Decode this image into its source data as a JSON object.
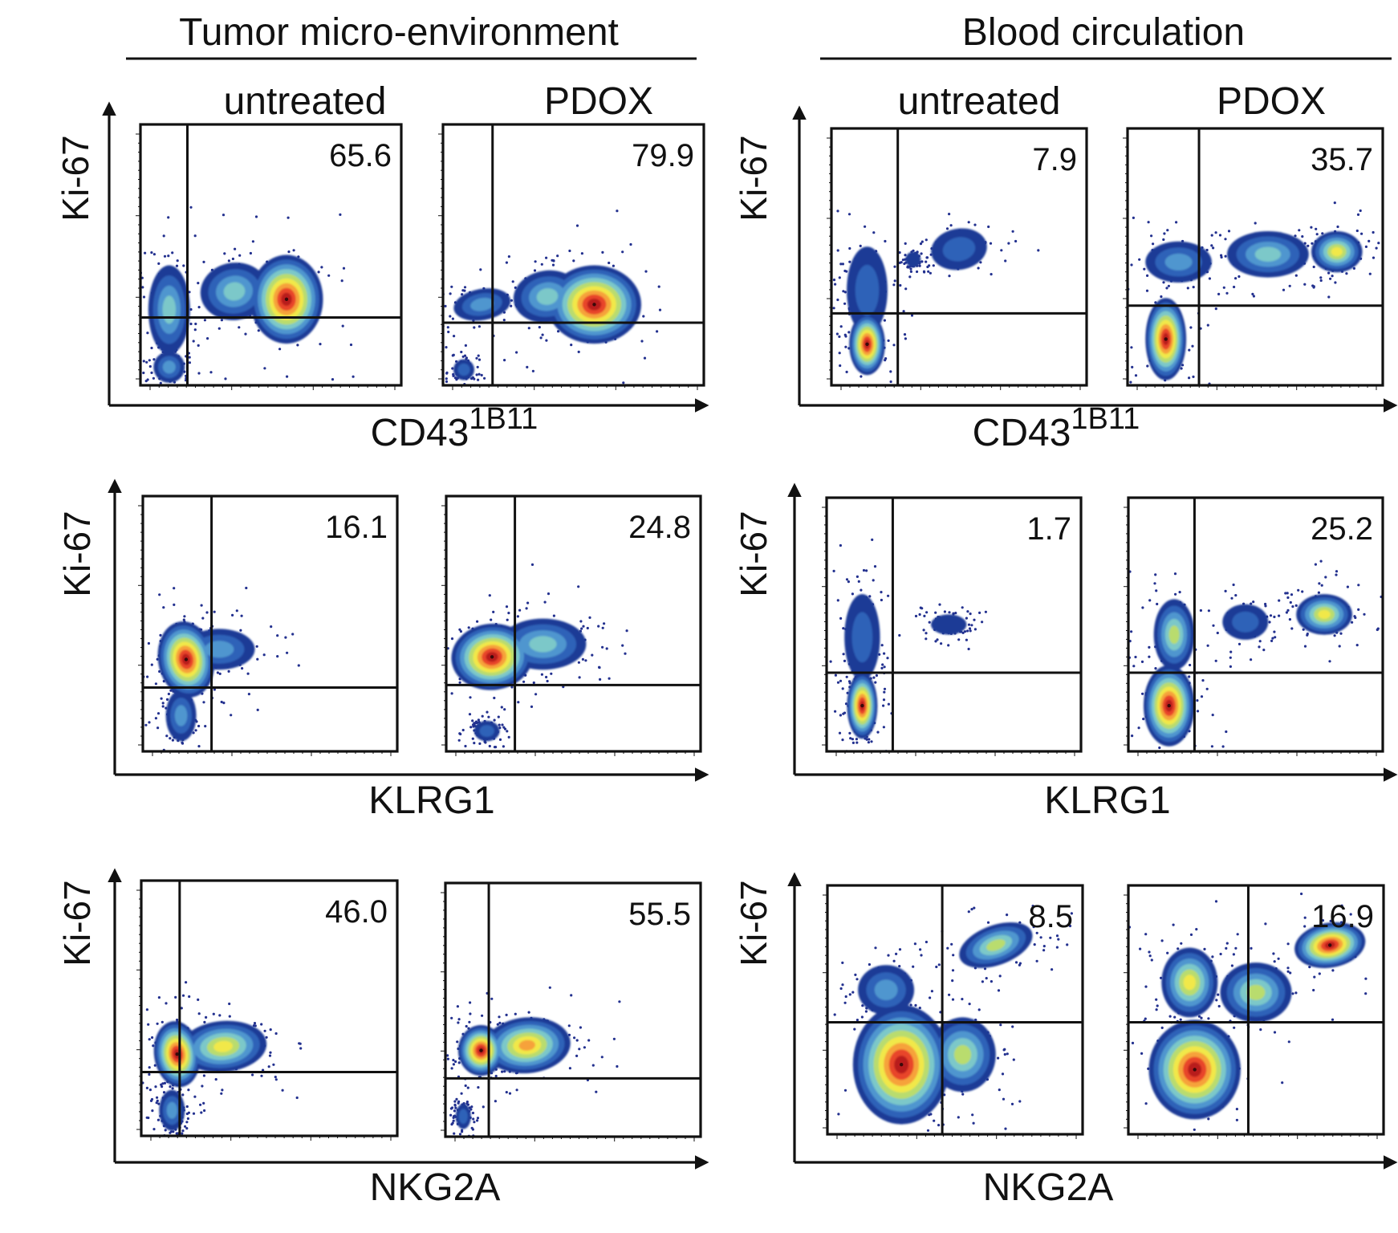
{
  "sections": [
    {
      "title": "Tumor micro-environment",
      "conditions": [
        "untreated",
        "PDOX"
      ]
    },
    {
      "title": "Blood circulation",
      "conditions": [
        "untreated",
        "PDOX"
      ]
    }
  ],
  "y_label": "Ki-67",
  "rows": [
    {
      "xlabel_base": "CD43",
      "xlabel_sup": "1B11"
    },
    {
      "xlabel_base": "KLRG1",
      "xlabel_sup": ""
    },
    {
      "xlabel_base": "NKG2A",
      "xlabel_sup": ""
    }
  ],
  "colors": {
    "density": [
      "#1c3b96",
      "#2f62b8",
      "#4f96cf",
      "#7cc8c9",
      "#b9dc6e",
      "#f1e84a",
      "#f6a23a",
      "#e8452b",
      "#b81e1c"
    ],
    "scatter": "#23318f",
    "ink": "#111111"
  },
  "chart_data": [
    {
      "type": "scatter",
      "section": "Tumor micro-environment",
      "condition": "untreated",
      "xlabel": "CD43 1B11",
      "ylabel": "Ki-67",
      "quadrant_upper_right_pct": "65.6",
      "plot_style": "pseudocolor density"
    },
    {
      "type": "scatter",
      "section": "Tumor micro-environment",
      "condition": "PDOX",
      "xlabel": "CD43 1B11",
      "ylabel": "Ki-67",
      "quadrant_upper_right_pct": "79.9",
      "plot_style": "pseudocolor density"
    },
    {
      "type": "scatter",
      "section": "Blood circulation",
      "condition": "untreated",
      "xlabel": "CD43 1B11",
      "ylabel": "Ki-67",
      "quadrant_upper_right_pct": "7.9",
      "plot_style": "pseudocolor density"
    },
    {
      "type": "scatter",
      "section": "Blood circulation",
      "condition": "PDOX",
      "xlabel": "CD43 1B11",
      "ylabel": "Ki-67",
      "quadrant_upper_right_pct": "35.7",
      "plot_style": "pseudocolor density"
    },
    {
      "type": "scatter",
      "section": "Tumor micro-environment",
      "condition": "untreated",
      "xlabel": "KLRG1",
      "ylabel": "Ki-67",
      "quadrant_upper_right_pct": "16.1",
      "plot_style": "pseudocolor density"
    },
    {
      "type": "scatter",
      "section": "Tumor micro-environment",
      "condition": "PDOX",
      "xlabel": "KLRG1",
      "ylabel": "Ki-67",
      "quadrant_upper_right_pct": "24.8",
      "plot_style": "pseudocolor density"
    },
    {
      "type": "scatter",
      "section": "Blood circulation",
      "condition": "untreated",
      "xlabel": "KLRG1",
      "ylabel": "Ki-67",
      "quadrant_upper_right_pct": "1.7",
      "plot_style": "pseudocolor density"
    },
    {
      "type": "scatter",
      "section": "Blood circulation",
      "condition": "PDOX",
      "xlabel": "KLRG1",
      "ylabel": "Ki-67",
      "quadrant_upper_right_pct": "25.2",
      "plot_style": "pseudocolor density"
    },
    {
      "type": "scatter",
      "section": "Tumor micro-environment",
      "condition": "untreated",
      "xlabel": "NKG2A",
      "ylabel": "Ki-67",
      "quadrant_upper_right_pct": "46.0",
      "plot_style": "pseudocolor density"
    },
    {
      "type": "scatter",
      "section": "Tumor micro-environment",
      "condition": "PDOX",
      "xlabel": "NKG2A",
      "ylabel": "Ki-67",
      "quadrant_upper_right_pct": "55.5",
      "plot_style": "pseudocolor density"
    },
    {
      "type": "scatter",
      "section": "Blood circulation",
      "condition": "untreated",
      "xlabel": "NKG2A",
      "ylabel": "Ki-67",
      "quadrant_upper_right_pct": "8.5",
      "plot_style": "pseudocolor density"
    },
    {
      "type": "scatter",
      "section": "Blood circulation",
      "condition": "PDOX",
      "xlabel": "NKG2A",
      "ylabel": "Ki-67",
      "quadrant_upper_right_pct": "16.9",
      "plot_style": "pseudocolor density"
    }
  ]
}
